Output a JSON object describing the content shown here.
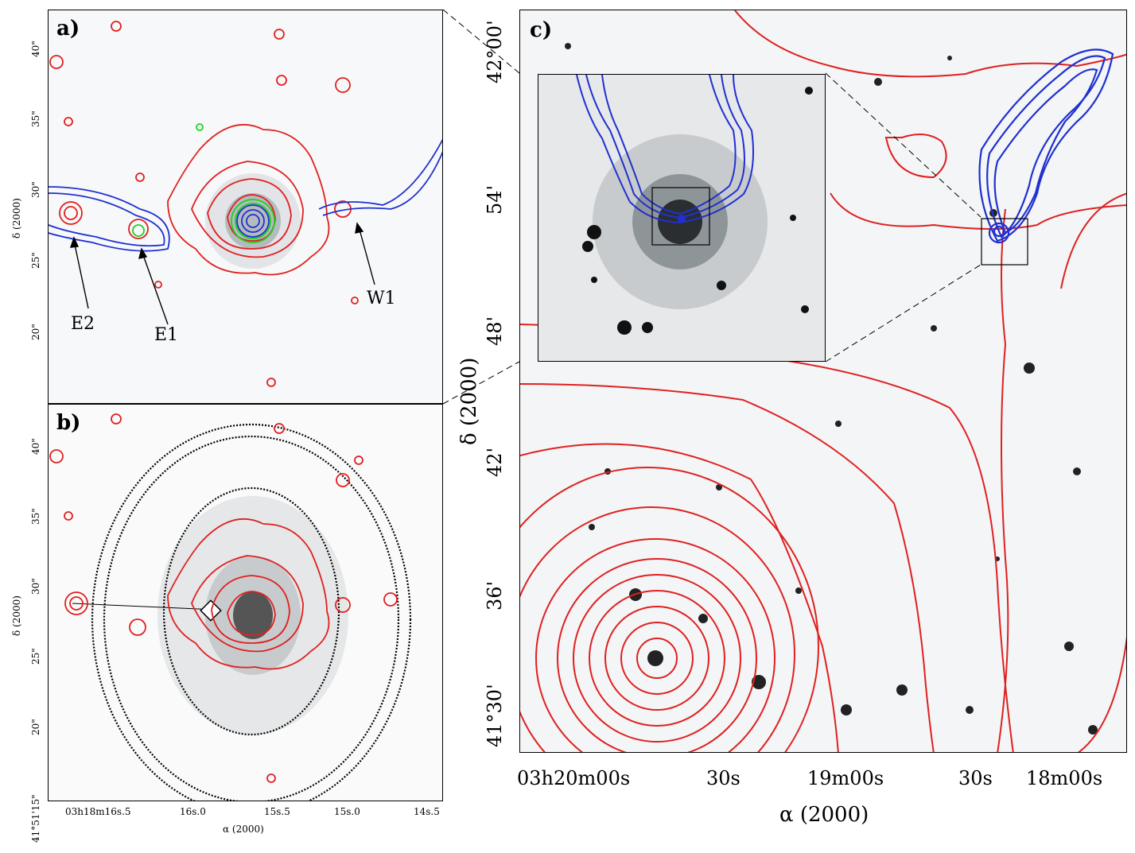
{
  "panels": {
    "a": {
      "label": "a)"
    },
    "b": {
      "label": "b)"
    },
    "c": {
      "label": "c)"
    }
  },
  "annotations": {
    "e2": "E2",
    "e1": "E1",
    "w1": "W1"
  },
  "small_axes": {
    "dec_label": "δ (2000)",
    "ra_label": "α (2000)",
    "dec_ticks_a": [
      "40\"",
      "35\"",
      "30\"",
      "25\"",
      "20\""
    ],
    "dec_ticks_b": [
      "40\"",
      "35\"",
      "30\"",
      "25\"",
      "20\"",
      "41°51'15\""
    ],
    "ra_ticks": [
      "03h18m16s.5",
      "16s.0",
      "15s.5",
      "15s.0",
      "14s.5"
    ]
  },
  "big_axes": {
    "dec_label": "δ (2000)",
    "ra_label": "α (2000)",
    "dec_ticks": [
      "42°00'",
      "54'",
      "48'",
      "42'",
      "36'",
      "41°30'"
    ],
    "ra_ticks": [
      "03h20m00s",
      "30s",
      "19m00s",
      "30s",
      "18m00s"
    ]
  },
  "colors": {
    "x_ray_contours": "#e02020",
    "radio_contours": "#2030d0",
    "green_contours": "#20d020",
    "optical_contours": "#000000"
  }
}
